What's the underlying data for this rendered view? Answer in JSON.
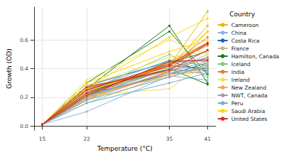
{
  "chart_data": {
    "type": "line",
    "x_label": "Temperature (°C)",
    "y_label": "Growth (OD)",
    "legend_title": "Country",
    "legend": "right",
    "grid": true,
    "marker": "circle",
    "x": [
      15,
      22,
      35,
      41
    ],
    "xlim": [
      13.7,
      42.3
    ],
    "xticks": [
      15,
      22,
      35,
      41
    ],
    "ylim": [
      -0.03,
      0.83
    ],
    "yticks": [
      {
        "value": 0,
        "label": "0.0"
      },
      0.2,
      0.4,
      0.6
    ],
    "series": [
      {
        "name": "Cameroon",
        "color": "#E6B800",
        "values": [
          0.01,
          0.24,
          0.42,
          0.8
        ]
      },
      {
        "name": "Cameroon",
        "color": "#E6B800",
        "values": [
          0.01,
          0.28,
          0.38,
          0.66
        ]
      },
      {
        "name": "Cameroon",
        "color": "#E6B800",
        "values": [
          0.01,
          0.2,
          0.45,
          0.58
        ]
      },
      {
        "name": "Cameroon",
        "color": "#E6B800",
        "values": [
          0.01,
          0.26,
          0.4,
          0.7
        ]
      },
      {
        "name": "China",
        "color": "#8FB3D9",
        "values": [
          0.01,
          0.1,
          0.35,
          0.32
        ]
      },
      {
        "name": "China",
        "color": "#8FB3D9",
        "values": [
          0.01,
          0.18,
          0.38,
          0.45
        ]
      },
      {
        "name": "China",
        "color": "#8FB3D9",
        "values": [
          0.01,
          0.22,
          0.4,
          0.36
        ]
      },
      {
        "name": "Costa Rica",
        "color": "#1F5FBF",
        "values": [
          0.01,
          0.25,
          0.42,
          0.4
        ]
      },
      {
        "name": "Costa Rica",
        "color": "#1F5FBF",
        "values": [
          0.01,
          0.22,
          0.36,
          0.44
        ]
      },
      {
        "name": "Costa Rica",
        "color": "#1F5FBF",
        "values": [
          0.01,
          0.28,
          0.45,
          0.38
        ]
      },
      {
        "name": "France",
        "color": "#C8B98F",
        "values": [
          0.01,
          0.2,
          0.38,
          0.5
        ]
      },
      {
        "name": "France",
        "color": "#C8B98F",
        "values": [
          0.01,
          0.24,
          0.34,
          0.42
        ]
      },
      {
        "name": "France",
        "color": "#C8B98F",
        "values": [
          0.01,
          0.18,
          0.44,
          0.46
        ]
      },
      {
        "name": "Hamilton, Canada",
        "color": "#1A7A1A",
        "values": [
          0.01,
          0.26,
          0.7,
          0.3
        ]
      },
      {
        "name": "Hamilton, Canada",
        "color": "#1A7A1A",
        "values": [
          0.01,
          0.3,
          0.66,
          0.36
        ]
      },
      {
        "name": "Hamilton, Canada",
        "color": "#1A7A1A",
        "values": [
          0.01,
          0.22,
          0.44,
          0.52
        ]
      },
      {
        "name": "Hamilton, Canada",
        "color": "#1A7A1A",
        "values": [
          0.01,
          0.24,
          0.4,
          0.29
        ]
      },
      {
        "name": "Iceland",
        "color": "#7FC97F",
        "values": [
          0.01,
          0.2,
          0.46,
          0.42
        ]
      },
      {
        "name": "Iceland",
        "color": "#7FC97F",
        "values": [
          0.01,
          0.16,
          0.36,
          0.4
        ]
      },
      {
        "name": "Iceland",
        "color": "#7FC97F",
        "values": [
          0.01,
          0.24,
          0.5,
          0.34
        ]
      },
      {
        "name": "India",
        "color": "#E67E22",
        "values": [
          0.01,
          0.22,
          0.4,
          0.58
        ]
      },
      {
        "name": "India",
        "color": "#E67E22",
        "values": [
          0.01,
          0.26,
          0.42,
          0.62
        ]
      },
      {
        "name": "India",
        "color": "#E67E22",
        "values": [
          0.01,
          0.19,
          0.38,
          0.48
        ]
      },
      {
        "name": "Ireland",
        "color": "#F5E050",
        "values": [
          0.01,
          0.28,
          0.48,
          0.52
        ]
      },
      {
        "name": "Ireland",
        "color": "#F5E050",
        "values": [
          0.01,
          0.21,
          0.26,
          0.44
        ]
      },
      {
        "name": "Ireland",
        "color": "#F5E050",
        "values": [
          0.01,
          0.32,
          0.6,
          0.5
        ]
      },
      {
        "name": "New Zealand",
        "color": "#FF9F40",
        "values": [
          0.01,
          0.24,
          0.44,
          0.56
        ]
      },
      {
        "name": "New Zealand",
        "color": "#FF9F40",
        "values": [
          0.01,
          0.2,
          0.36,
          0.38
        ]
      },
      {
        "name": "New Zealand",
        "color": "#FF9F40",
        "values": [
          0.01,
          0.27,
          0.41,
          0.47
        ]
      },
      {
        "name": "NWT, Canada",
        "color": "#9AA0A6",
        "values": [
          0.01,
          0.18,
          0.34,
          0.43
        ]
      },
      {
        "name": "NWT, Canada",
        "color": "#9AA0A6",
        "values": [
          0.01,
          0.23,
          0.39,
          0.39
        ]
      },
      {
        "name": "NWT, Canada",
        "color": "#9AA0A6",
        "values": [
          0.01,
          0.21,
          0.37,
          0.41
        ]
      },
      {
        "name": "Peru",
        "color": "#6BAED6",
        "values": [
          0.01,
          0.16,
          0.3,
          0.37
        ]
      },
      {
        "name": "Peru",
        "color": "#6BAED6",
        "values": [
          0.01,
          0.25,
          0.46,
          0.45
        ]
      },
      {
        "name": "Peru",
        "color": "#6BAED6",
        "values": [
          0.01,
          0.2,
          0.4,
          0.48
        ]
      },
      {
        "name": "Saudi Arabia",
        "color": "#FFD700",
        "values": [
          0.01,
          0.26,
          0.62,
          0.75
        ]
      },
      {
        "name": "Saudi Arabia",
        "color": "#FFD700",
        "values": [
          0.01,
          0.24,
          0.43,
          0.66
        ]
      },
      {
        "name": "Saudi Arabia",
        "color": "#FFD700",
        "values": [
          0.01,
          0.3,
          0.52,
          0.6
        ]
      },
      {
        "name": "United States",
        "color": "#D62728",
        "values": [
          0.01,
          0.23,
          0.42,
          0.57
        ]
      },
      {
        "name": "United States",
        "color": "#D62728",
        "values": [
          0.01,
          0.27,
          0.39,
          0.53
        ]
      },
      {
        "name": "United States",
        "color": "#D62728",
        "values": [
          0.01,
          0.21,
          0.45,
          0.46
        ]
      },
      {
        "name": "United States",
        "color": "#D62728",
        "values": [
          0.01,
          0.25,
          0.43,
          0.58
        ]
      }
    ]
  }
}
